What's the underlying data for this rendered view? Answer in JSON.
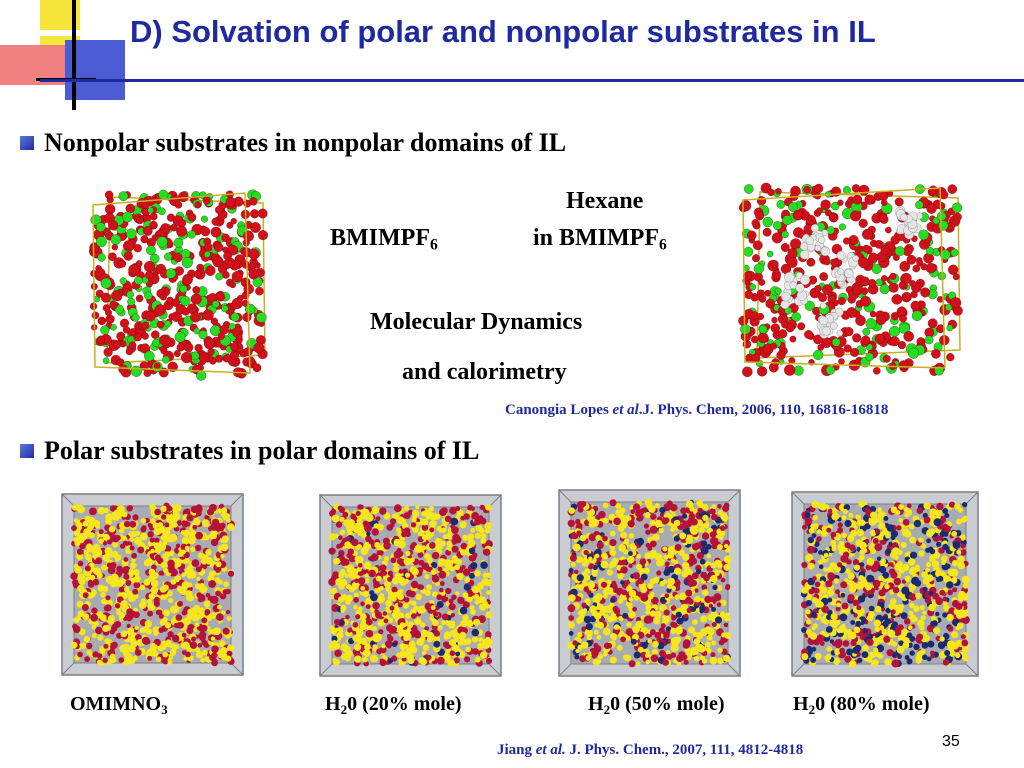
{
  "slide": {
    "title": "D) Solvation of polar and nonpolar substrates in IL",
    "page_number": "35"
  },
  "section1": {
    "heading": "Nonpolar substrates in nonpolar domains of IL",
    "label_left_base": "BMIMPF",
    "label_left_sub": "6",
    "label_right_line1": "Hexane",
    "label_right_line2_base": "in BMIMPF",
    "label_right_line2_sub": "6",
    "method_line1": "Molecular Dynamics",
    "method_line2": "and calorimetry",
    "citation_pre": "Canongia Lopes ",
    "citation_etal": "et al",
    "citation_post": ".J. Phys. Chem, 2006, 110, 16816-16818"
  },
  "section2": {
    "heading": "Polar substrates in polar domains of IL",
    "captions": [
      {
        "base": "OMIMNO",
        "sub": "3",
        "rest": ""
      },
      {
        "base": "H",
        "sub": "2",
        "rest": "0 (20% mole)"
      },
      {
        "base": "H",
        "sub": "2",
        "rest": "0 (50% mole)"
      },
      {
        "base": "H",
        "sub": "2",
        "rest": "0 (80% mole)"
      }
    ],
    "citation_pre": "Jiang ",
    "citation_etal": "et al.",
    "citation_post": " J. Phys. Chem., 2007, 111, 4812-4818"
  },
  "colors": {
    "title_blue": "#1f2aa0",
    "md_red": "#d0111a",
    "md_green": "#22dd22",
    "md_white": "#e6e6e6",
    "polar_yellow": "#f5e61e",
    "polar_crimson": "#b5123a",
    "water_navy": "#1c2a6e",
    "box_gray": "#a8acb2"
  }
}
